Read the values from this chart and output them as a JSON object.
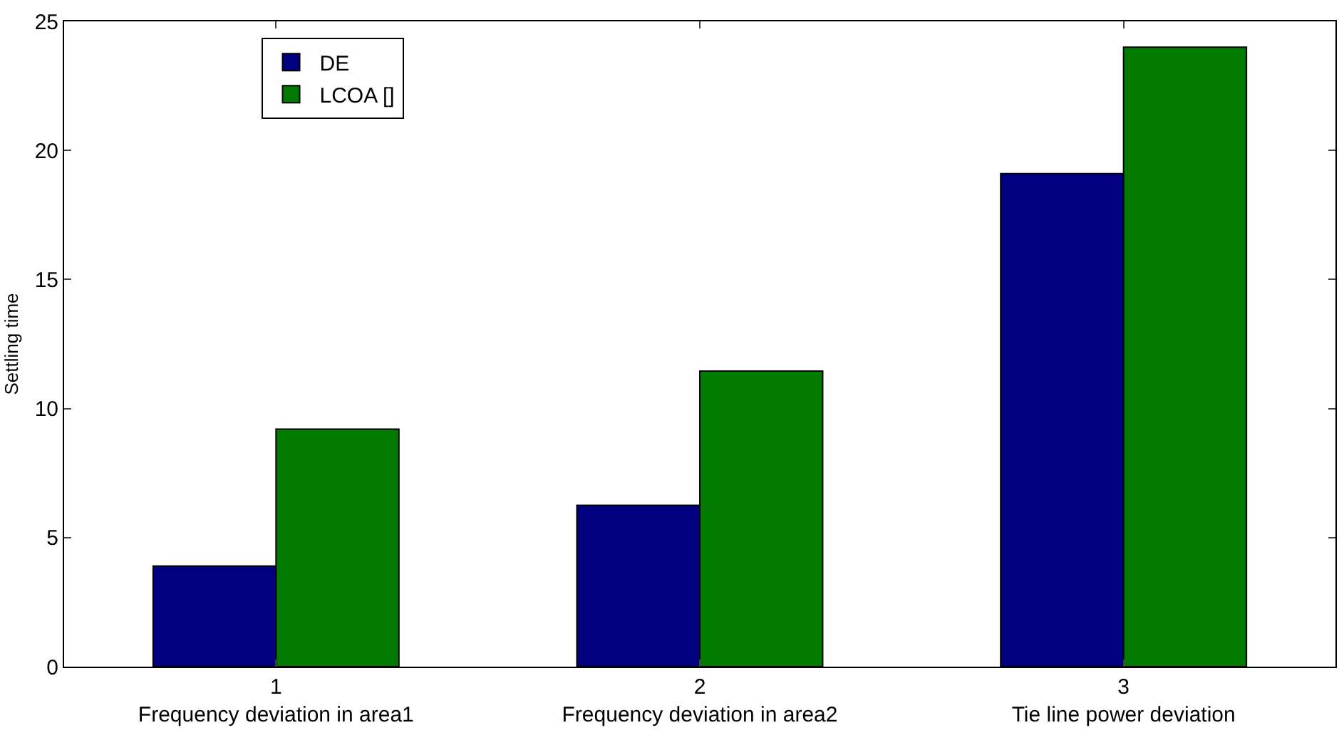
{
  "chart_data": {
    "type": "bar",
    "ylabel": "Settling time",
    "categories": [
      "1\nFrequency deviation in area1",
      "2\nFrequency deviation in area2",
      "3\nTie line power deviation"
    ],
    "series": [
      {
        "name": "DE",
        "color": "#000080",
        "values": [
          3.9,
          6.25,
          19.1
        ]
      },
      {
        "name": "LCOA []",
        "color": "#007a00",
        "values": [
          9.2,
          11.45,
          24.0
        ]
      }
    ],
    "ylim": [
      0,
      25
    ],
    "yticks": [
      0,
      5,
      10,
      15,
      20,
      25
    ],
    "grid": false,
    "legend": "top left"
  }
}
